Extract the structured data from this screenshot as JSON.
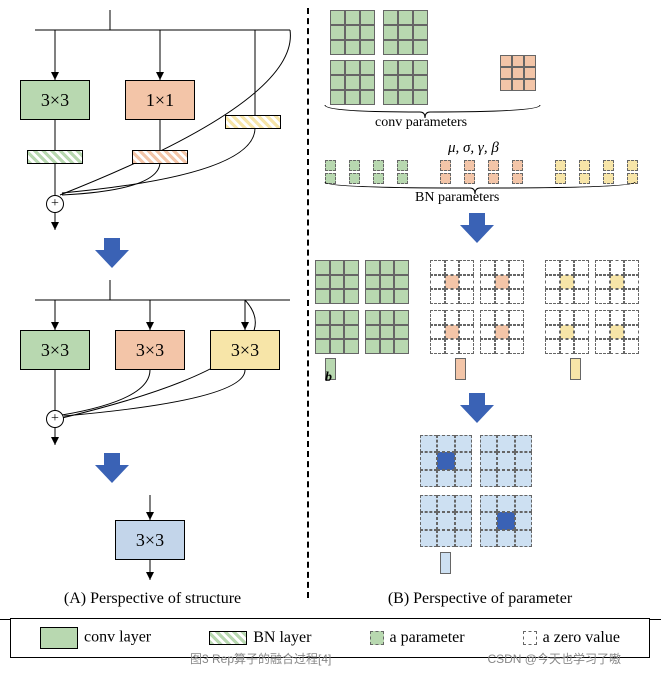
{
  "colors": {
    "green": "#b8d8b0",
    "orange": "#f3c5a8",
    "yellow": "#f7e5a8",
    "lightblue": "#c3d5ea",
    "arrow": "#3a62b5",
    "panel_blue_light": "#cde0f2",
    "panel_blue_dark": "#3a62b5"
  },
  "panelA": {
    "caption": "(A) Perspective of structure",
    "stage1": {
      "boxes": [
        {
          "label": "3×3",
          "color": "green"
        },
        {
          "label": "1×1",
          "color": "orange"
        }
      ],
      "bn_branches": [
        "green",
        "orange",
        "yellow"
      ]
    },
    "stage2": {
      "boxes": [
        {
          "label": "3×3",
          "color": "green"
        },
        {
          "label": "3×3",
          "color": "orange"
        },
        {
          "label": "3×3",
          "color": "yellow"
        }
      ]
    },
    "stage3": {
      "box": {
        "label": "3×3",
        "color": "lightblue"
      }
    }
  },
  "panelB": {
    "caption": "(B) Perspective of parameter",
    "conv_label": "conv parameters",
    "bn_label": "BN parameters",
    "bn_symbols": "μ,  σ,  γ,  β",
    "bias_label": "b",
    "conv_kernels": {
      "green_count": 4,
      "orange_count": 1,
      "kernel_size": 3
    },
    "bn_vectors": {
      "groups": [
        {
          "color": "green",
          "n": 4
        },
        {
          "color": "orange",
          "n": 4
        },
        {
          "color": "yellow",
          "n": 4
        }
      ],
      "vec_len": 2
    },
    "fused_stage": {
      "groups": [
        {
          "base": "green",
          "center": "green",
          "count": 4,
          "solid": true
        },
        {
          "base": "white",
          "center": "orange",
          "count": 4,
          "solid": false
        },
        {
          "base": "white",
          "center": "yellow",
          "count": 4,
          "solid": false
        }
      ],
      "biases": [
        "green",
        "orange",
        "yellow"
      ]
    },
    "final_stage": {
      "kernels": [
        {
          "center": "db"
        },
        {
          "center": "lb"
        },
        {
          "center": "lb"
        },
        {
          "center": "db"
        }
      ],
      "bias": "b"
    }
  },
  "legend": {
    "conv": "conv layer",
    "bn": "BN layer",
    "param": "a parameter",
    "zero": "a zero value"
  },
  "caption": {
    "left": "图3 Rep算子的融合过程[4]",
    "right": "CSDN @今天也学习了嗷"
  }
}
